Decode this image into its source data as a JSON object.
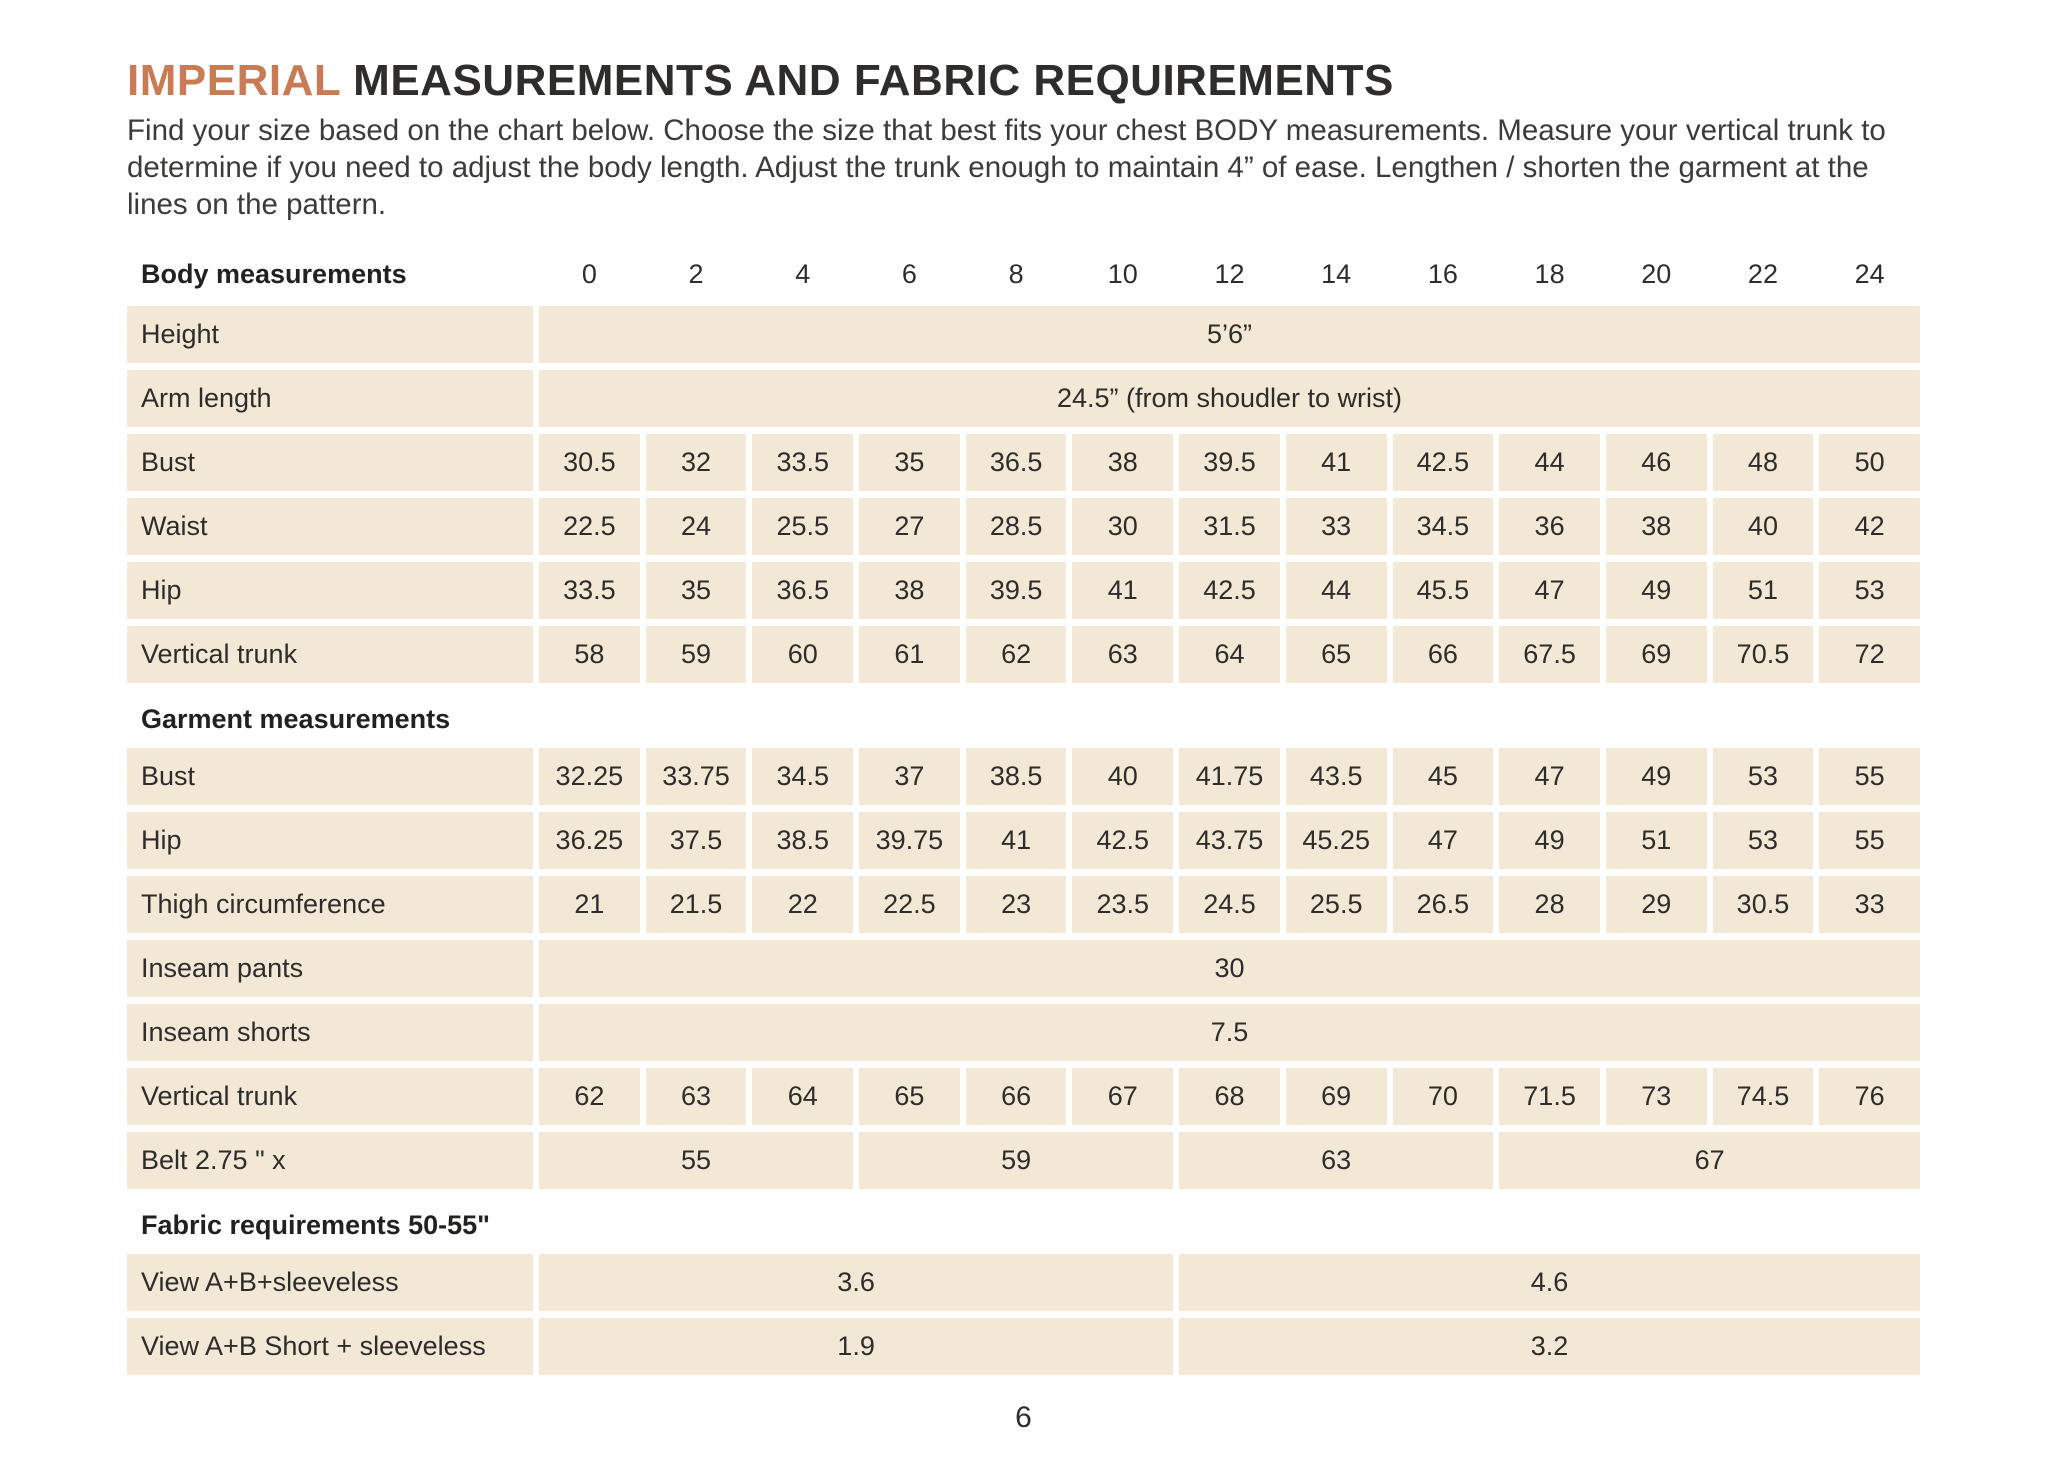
{
  "page": {
    "title_highlight": "IMPERIAL",
    "title_rest": "MEASUREMENTS AND FABRIC REQUIREMENTS",
    "intro": "Find your size based on the chart below. Choose the size that best fits your chest BODY measurements. Measure your vertical trunk to determine if you need to adjust the body length. Adjust the trunk enough to maintain 4” of ease. Lengthen / shorten the garment at the lines on the pattern.",
    "page_number": "6"
  },
  "colors": {
    "accent": "#c87b54",
    "cell_background": "#f2e8d5",
    "text": "#2e2d2b"
  },
  "table": {
    "header": {
      "label": "Body measurements",
      "sizes": [
        "0",
        "2",
        "4",
        "6",
        "8",
        "10",
        "12",
        "14",
        "16",
        "18",
        "20",
        "22",
        "24"
      ]
    },
    "sections": [
      {
        "heading": null,
        "rows": [
          {
            "label": "Height",
            "cells": [
              {
                "v": "5’6”",
                "span": 13
              }
            ]
          },
          {
            "label": "Arm length",
            "cells": [
              {
                "v": "24.5” (from shoudler to wrist)",
                "span": 13
              }
            ]
          },
          {
            "label": "Bust",
            "cells": [
              {
                "v": "30.5"
              },
              {
                "v": "32"
              },
              {
                "v": "33.5"
              },
              {
                "v": "35"
              },
              {
                "v": "36.5"
              },
              {
                "v": "38"
              },
              {
                "v": "39.5"
              },
              {
                "v": "41"
              },
              {
                "v": "42.5"
              },
              {
                "v": "44"
              },
              {
                "v": "46"
              },
              {
                "v": "48"
              },
              {
                "v": "50"
              }
            ]
          },
          {
            "label": "Waist",
            "cells": [
              {
                "v": "22.5"
              },
              {
                "v": "24"
              },
              {
                "v": "25.5"
              },
              {
                "v": "27"
              },
              {
                "v": "28.5"
              },
              {
                "v": "30"
              },
              {
                "v": "31.5"
              },
              {
                "v": "33"
              },
              {
                "v": "34.5"
              },
              {
                "v": "36"
              },
              {
                "v": "38"
              },
              {
                "v": "40"
              },
              {
                "v": "42"
              }
            ]
          },
          {
            "label": "Hip",
            "cells": [
              {
                "v": "33.5"
              },
              {
                "v": "35"
              },
              {
                "v": "36.5"
              },
              {
                "v": "38"
              },
              {
                "v": "39.5"
              },
              {
                "v": "41"
              },
              {
                "v": "42.5"
              },
              {
                "v": "44"
              },
              {
                "v": "45.5"
              },
              {
                "v": "47"
              },
              {
                "v": "49"
              },
              {
                "v": "51"
              },
              {
                "v": "53"
              }
            ]
          },
          {
            "label": "Vertical trunk",
            "cells": [
              {
                "v": "58"
              },
              {
                "v": "59"
              },
              {
                "v": "60"
              },
              {
                "v": "61"
              },
              {
                "v": "62"
              },
              {
                "v": "63"
              },
              {
                "v": "64"
              },
              {
                "v": "65"
              },
              {
                "v": "66"
              },
              {
                "v": "67.5"
              },
              {
                "v": "69"
              },
              {
                "v": "70.5"
              },
              {
                "v": "72"
              }
            ]
          }
        ]
      },
      {
        "heading": "Garment measurements",
        "rows": [
          {
            "label": "Bust",
            "cells": [
              {
                "v": "32.25"
              },
              {
                "v": "33.75"
              },
              {
                "v": "34.5"
              },
              {
                "v": "37"
              },
              {
                "v": "38.5"
              },
              {
                "v": "40"
              },
              {
                "v": "41.75"
              },
              {
                "v": "43.5"
              },
              {
                "v": "45"
              },
              {
                "v": "47"
              },
              {
                "v": "49"
              },
              {
                "v": "53"
              },
              {
                "v": "55"
              }
            ]
          },
          {
            "label": "Hip",
            "cells": [
              {
                "v": "36.25"
              },
              {
                "v": "37.5"
              },
              {
                "v": "38.5"
              },
              {
                "v": "39.75"
              },
              {
                "v": "41"
              },
              {
                "v": "42.5"
              },
              {
                "v": "43.75"
              },
              {
                "v": "45.25"
              },
              {
                "v": "47"
              },
              {
                "v": "49"
              },
              {
                "v": "51"
              },
              {
                "v": "53"
              },
              {
                "v": "55"
              }
            ]
          },
          {
            "label": "Thigh circumference",
            "cells": [
              {
                "v": "21"
              },
              {
                "v": "21.5"
              },
              {
                "v": "22"
              },
              {
                "v": "22.5"
              },
              {
                "v": "23"
              },
              {
                "v": "23.5"
              },
              {
                "v": "24.5"
              },
              {
                "v": "25.5"
              },
              {
                "v": "26.5"
              },
              {
                "v": "28"
              },
              {
                "v": "29"
              },
              {
                "v": "30.5"
              },
              {
                "v": "33"
              }
            ]
          },
          {
            "label": "Inseam pants",
            "cells": [
              {
                "v": "30",
                "span": 13
              }
            ]
          },
          {
            "label": "Inseam shorts",
            "cells": [
              {
                "v": "7.5",
                "span": 13
              }
            ]
          },
          {
            "label": "Vertical trunk",
            "cells": [
              {
                "v": "62"
              },
              {
                "v": "63"
              },
              {
                "v": "64"
              },
              {
                "v": "65"
              },
              {
                "v": "66"
              },
              {
                "v": "67"
              },
              {
                "v": "68"
              },
              {
                "v": "69"
              },
              {
                "v": "70"
              },
              {
                "v": "71.5"
              },
              {
                "v": "73"
              },
              {
                "v": "74.5"
              },
              {
                "v": "76"
              }
            ]
          },
          {
            "label": "Belt 2.75 \" x",
            "cells": [
              {
                "v": "55",
                "span": 3
              },
              {
                "v": "59",
                "span": 3
              },
              {
                "v": "63",
                "span": 3
              },
              {
                "v": "67",
                "span": 4
              }
            ]
          }
        ]
      },
      {
        "heading": "Fabric requirements 50-55\"",
        "rows": [
          {
            "label": "View A+B+sleeveless",
            "cells": [
              {
                "v": "3.6",
                "span": 6
              },
              {
                "v": "4.6",
                "span": 7
              }
            ]
          },
          {
            "label": "View A+B Short + sleeveless",
            "cells": [
              {
                "v": "1.9",
                "span": 6
              },
              {
                "v": "3.2",
                "span": 7
              }
            ]
          }
        ]
      }
    ]
  }
}
